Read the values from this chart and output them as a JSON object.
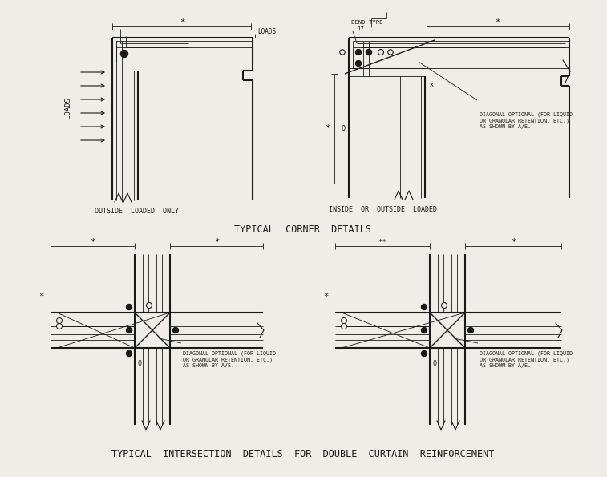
{
  "bg_color": "#f0ede8",
  "line_color": "#1a1a1a",
  "title1": "TYPICAL  CORNER  DETAILS",
  "title2": "TYPICAL  INTERSECTION  DETAILS  FOR  DOUBLE  CURTAIN  REINFORCEMENT",
  "label_corner1": "OUTSIDE  LOADED  ONLY",
  "label_corner2": "INSIDE  OR  OUTSIDE  LOADED",
  "label_loads_top": "LOADS",
  "label_loads_side": "LOADS",
  "label_diagonal": "DIAGONAL OPTIONAL (FOR LIQUID\nOR GRANULAR RETENTION, ETC.)\nAS SHOWN BY A/E.",
  "label_bend1": "BEND TYPE",
  "label_bend2": "17",
  "font_size_title": 8.5,
  "font_size_label": 6.0,
  "font_size_note": 4.8,
  "font_size_dim": 7.5
}
